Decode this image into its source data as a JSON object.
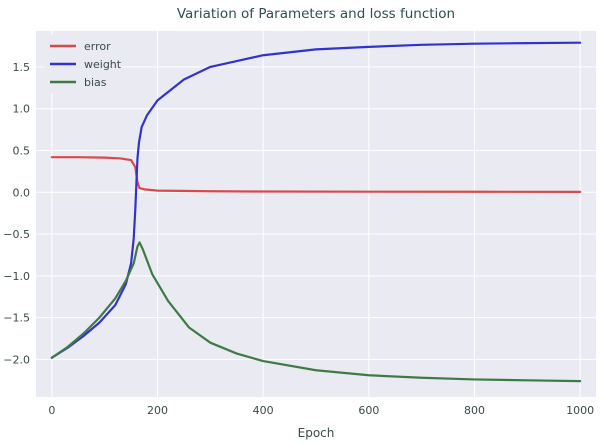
{
  "chart_data": {
    "type": "line",
    "title": "Variation of Parameters and loss function",
    "xlabel": "Epoch",
    "ylabel": "",
    "xlim": [
      -30,
      1030
    ],
    "ylim": [
      -2.45,
      1.93
    ],
    "xticks": [
      0,
      200,
      400,
      600,
      800,
      1000
    ],
    "yticks": [
      -2.0,
      -1.5,
      -1.0,
      -0.5,
      0.0,
      0.5,
      1.0,
      1.5
    ],
    "ytick_labels": [
      "−2.0",
      "−1.5",
      "−1.0",
      "−0.5",
      "0.0",
      "0.5",
      "1.0",
      "1.5"
    ],
    "grid": true,
    "legend_position": "top-left",
    "background": "#eaeaf2",
    "series": [
      {
        "name": "error",
        "color": "#d8494c",
        "x": [
          0,
          50,
          100,
          130,
          150,
          158,
          162,
          166,
          175,
          200,
          300,
          400,
          600,
          800,
          1000
        ],
        "y": [
          0.42,
          0.42,
          0.415,
          0.405,
          0.385,
          0.3,
          0.12,
          0.05,
          0.035,
          0.02,
          0.012,
          0.009,
          0.007,
          0.006,
          0.005
        ]
      },
      {
        "name": "weight",
        "color": "#3333cc",
        "x": [
          0,
          30,
          60,
          90,
          120,
          140,
          150,
          155,
          158,
          160,
          162,
          165,
          170,
          180,
          200,
          250,
          300,
          400,
          500,
          600,
          700,
          800,
          900,
          1000
        ],
        "y": [
          -1.98,
          -1.86,
          -1.72,
          -1.56,
          -1.35,
          -1.1,
          -0.85,
          -0.55,
          -0.2,
          0.1,
          0.4,
          0.6,
          0.78,
          0.92,
          1.1,
          1.35,
          1.5,
          1.64,
          1.71,
          1.74,
          1.765,
          1.778,
          1.785,
          1.79
        ]
      },
      {
        "name": "bias",
        "color": "#3f7a46",
        "x": [
          0,
          30,
          60,
          90,
          120,
          140,
          155,
          162,
          166,
          172,
          190,
          220,
          260,
          300,
          350,
          400,
          500,
          600,
          700,
          800,
          900,
          1000
        ],
        "y": [
          -1.98,
          -1.85,
          -1.69,
          -1.5,
          -1.27,
          -1.06,
          -0.85,
          -0.65,
          -0.6,
          -0.68,
          -0.98,
          -1.3,
          -1.62,
          -1.8,
          -1.93,
          -2.02,
          -2.13,
          -2.19,
          -2.22,
          -2.24,
          -2.25,
          -2.26
        ]
      }
    ]
  }
}
